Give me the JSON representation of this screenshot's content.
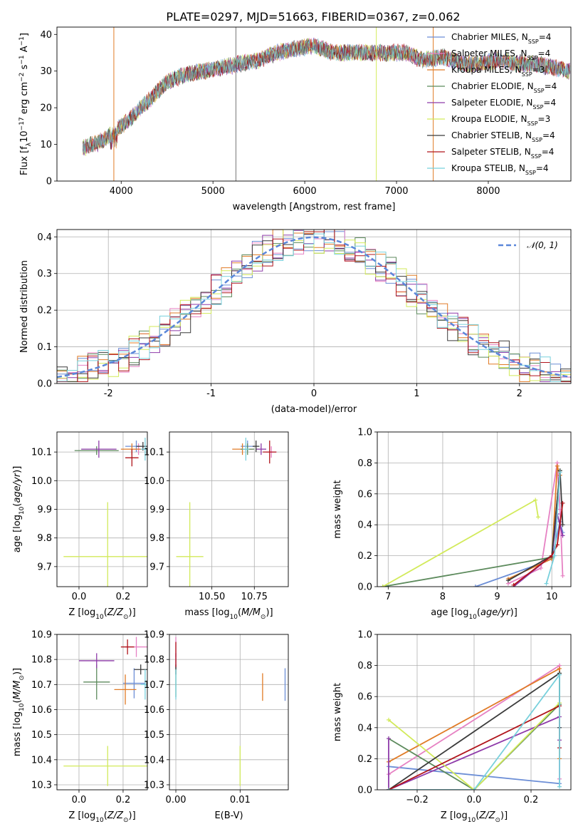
{
  "title": "PLATE=0297, MJD=51663, FIBERID=0367, z=0.062",
  "colors": {
    "Chabrier MILES": "#6c8ed6",
    "Salpeter MILES": "#e681c3",
    "Kroupa MILES": "#e07b26",
    "Chabrier ELODIE": "#5c8a5c",
    "Salpeter ELODIE": "#8e3aa9",
    "Kroupa ELODIE": "#d2ea5a",
    "Chabrier STELIB": "#3b3b3b",
    "Salpeter STELIB": "#b0141b",
    "Kroupa STELIB": "#78d0dc",
    "normal": "#5b87d9",
    "grid": "#b0b0b0"
  },
  "chart_data": [
    {
      "id": "spectrum",
      "type": "line",
      "xlabel": "wavelength [Angstrom, rest frame]",
      "ylabel_parts": {
        "pre": "Flux [f",
        "sub1": "λ",
        "mid": "10",
        "sup1": "−17",
        "post": " erg cm",
        "sup2": "−2",
        "mid2": " s",
        "sup3": "−1",
        "mid3": " A",
        "sup4": "−1",
        "end": "]"
      },
      "xlim": [
        3300,
        8900
      ],
      "ylim": [
        0,
        42
      ],
      "xticks": [
        4000,
        5000,
        6000,
        7000,
        8000
      ],
      "yticks": [
        0,
        10,
        20,
        30,
        40
      ],
      "continuum_x": [
        3580,
        3800,
        3950,
        4100,
        4300,
        4500,
        4700,
        4900,
        5100,
        5300,
        5500,
        5700,
        5900,
        6100,
        6300,
        6500,
        6700,
        6900,
        7100,
        7300,
        7500,
        7700,
        7900,
        8100,
        8300,
        8500,
        8700,
        8890
      ],
      "continuum_y": [
        9,
        11,
        14,
        17,
        22,
        27,
        29,
        30,
        31,
        32,
        33,
        35,
        36,
        37,
        35,
        35,
        35,
        35,
        35,
        33,
        34,
        32,
        32,
        33,
        32,
        32,
        31,
        30
      ],
      "series": [
        {
          "name": "Chabrier MILES",
          "nssp": "4"
        },
        {
          "name": "Salpeter MILES",
          "nssp": "4"
        },
        {
          "name": "Kroupa MILES",
          "nssp": "3"
        },
        {
          "name": "Chabrier ELODIE",
          "nssp": "4"
        },
        {
          "name": "Salpeter ELODIE",
          "nssp": "4"
        },
        {
          "name": "Kroupa ELODIE",
          "nssp": "3"
        },
        {
          "name": "Chabrier STELIB",
          "nssp": "4"
        },
        {
          "name": "Salpeter STELIB",
          "nssp": "4"
        },
        {
          "name": "Kroupa STELIB",
          "nssp": "4"
        }
      ]
    },
    {
      "id": "residuals",
      "type": "histogram-step",
      "xlabel": "(data-model)/error",
      "ylabel": "Normed distribution",
      "xlim": [
        -2.5,
        2.5
      ],
      "ylim": [
        0,
        0.42
      ],
      "xticks": [
        -2,
        -1,
        0,
        1,
        2
      ],
      "yticks": [
        0.0,
        0.1,
        0.2,
        0.3,
        0.4
      ],
      "legend": "𝒩(0, 1)",
      "bin_width": 0.1
    },
    {
      "id": "age_vs_Z",
      "type": "errorbar",
      "xlabel": "Z [log10(Z/Z⊙)]",
      "ylabel": "age  [log10(age/yr)]",
      "xlim": [
        -0.1,
        0.31
      ],
      "ylim": [
        9.63,
        10.17
      ],
      "xticks": [
        0.0,
        0.2
      ],
      "yticks": [
        9.7,
        9.8,
        9.9,
        10.0,
        10.1
      ],
      "points": [
        {
          "name": "Chabrier MILES",
          "x": 0.26,
          "y": 10.12,
          "xe": 0.05,
          "ye": 0.02
        },
        {
          "name": "Salpeter MILES",
          "x": 0.27,
          "y": 10.11,
          "xe": 0.03,
          "ye": 0.02
        },
        {
          "name": "Kroupa MILES",
          "x": 0.24,
          "y": 10.11,
          "xe": 0.05,
          "ye": 0.02
        },
        {
          "name": "Chabrier ELODIE",
          "x": 0.08,
          "y": 10.105,
          "xe": 0.1,
          "ye": 0.015
        },
        {
          "name": "Salpeter ELODIE",
          "x": 0.09,
          "y": 10.11,
          "xe": 0.08,
          "ye": 0.03
        },
        {
          "name": "Kroupa ELODIE",
          "x": 0.13,
          "y": 9.735,
          "xe": 0.2,
          "ye": 0.19
        },
        {
          "name": "Chabrier STELIB",
          "x": 0.29,
          "y": 10.12,
          "xe": 0.03,
          "ye": 0.015
        },
        {
          "name": "Salpeter STELIB",
          "x": 0.24,
          "y": 10.08,
          "xe": 0.03,
          "ye": 0.03
        },
        {
          "name": "Kroupa STELIB",
          "x": 0.3,
          "y": 10.11,
          "xe": 0.02,
          "ye": 0.04
        }
      ]
    },
    {
      "id": "age_vs_mass",
      "type": "errorbar",
      "xlabel": "mass [log10(M/M⊙)]",
      "ylabel": "",
      "xlim": [
        10.25,
        10.95
      ],
      "ylim": [
        9.63,
        10.17
      ],
      "xticks": [
        10.5,
        10.75
      ],
      "yticks": [
        9.7,
        9.8,
        9.9,
        10.0,
        10.1
      ],
      "points": [
        {
          "name": "Chabrier MILES",
          "x": 10.71,
          "y": 10.12,
          "xe": 0.04,
          "ye": 0.02
        },
        {
          "name": "Salpeter MILES",
          "x": 10.85,
          "y": 10.1,
          "xe": 0.03,
          "ye": 0.02
        },
        {
          "name": "Kroupa MILES",
          "x": 10.68,
          "y": 10.11,
          "xe": 0.06,
          "ye": 0.02
        },
        {
          "name": "Chabrier ELODIE",
          "x": 10.71,
          "y": 10.11,
          "xe": 0.04,
          "ye": 0.02
        },
        {
          "name": "Salpeter ELODIE",
          "x": 10.79,
          "y": 10.11,
          "xe": 0.03,
          "ye": 0.02
        },
        {
          "name": "Kroupa ELODIE",
          "x": 10.37,
          "y": 9.735,
          "xe": 0.08,
          "ye": 0.19
        },
        {
          "name": "Chabrier STELIB",
          "x": 10.76,
          "y": 10.12,
          "xe": 0.02,
          "ye": 0.02
        },
        {
          "name": "Salpeter STELIB",
          "x": 10.84,
          "y": 10.1,
          "xe": 0.04,
          "ye": 0.04
        },
        {
          "name": "Kroupa STELIB",
          "x": 10.7,
          "y": 10.11,
          "xe": 0.02,
          "ye": 0.04
        }
      ]
    },
    {
      "id": "weight_vs_age",
      "type": "line",
      "xlabel": "age  [log10(age/yr)]",
      "ylabel": "mass weight",
      "xlim": [
        6.8,
        10.35
      ],
      "ylim": [
        0,
        1.0
      ],
      "xticks": [
        7,
        8,
        9,
        10
      ],
      "yticks": [
        0.0,
        0.2,
        0.4,
        0.6,
        0.8,
        1.0
      ],
      "series": [
        {
          "name": "Chabrier MILES",
          "x": [
            8.6,
            9.8,
            10.0,
            10.15,
            10.2
          ],
          "y": [
            0.0,
            0.15,
            0.18,
            0.42,
            0.35
          ]
        },
        {
          "name": "Salpeter MILES",
          "x": [
            9.2,
            9.8,
            10.1,
            10.15,
            10.2
          ],
          "y": [
            0.02,
            0.12,
            0.8,
            0.5,
            0.07
          ]
        },
        {
          "name": "Kroupa MILES",
          "x": [
            9.2,
            10.0,
            10.1,
            10.15
          ],
          "y": [
            0.05,
            0.18,
            0.78,
            0.72
          ]
        },
        {
          "name": "Chabrier ELODIE",
          "x": [
            6.9,
            10.0,
            10.15
          ],
          "y": [
            0.0,
            0.19,
            0.75
          ]
        },
        {
          "name": "Salpeter ELODIE",
          "x": [
            9.3,
            10.0,
            10.1,
            10.2
          ],
          "y": [
            0.0,
            0.2,
            0.47,
            0.33
          ]
        },
        {
          "name": "Kroupa ELODIE",
          "x": [
            6.9,
            9.7,
            9.75
          ],
          "y": [
            0.0,
            0.56,
            0.45
          ]
        },
        {
          "name": "Chabrier STELIB",
          "x": [
            9.2,
            10.0,
            10.15,
            10.2
          ],
          "y": [
            0.04,
            0.2,
            0.75,
            0.4
          ]
        },
        {
          "name": "Salpeter STELIB",
          "x": [
            9.3,
            10.0,
            10.1,
            10.2
          ],
          "y": [
            0.01,
            0.2,
            0.27,
            0.54
          ]
        },
        {
          "name": "Kroupa STELIB",
          "x": [
            9.9,
            10.05,
            10.15
          ],
          "y": [
            0.02,
            0.2,
            0.74
          ]
        }
      ]
    },
    {
      "id": "mass_vs_Z",
      "type": "errorbar",
      "xlabel": "Z [log10(Z/Z⊙)]",
      "ylabel": "mass [log10(M/M⊙)]",
      "xlim": [
        -0.1,
        0.31
      ],
      "ylim": [
        10.28,
        10.9
      ],
      "xticks": [
        0.0,
        0.2
      ],
      "yticks": [
        10.3,
        10.4,
        10.5,
        10.6,
        10.7,
        10.8,
        10.9
      ],
      "points": [
        {
          "name": "Chabrier MILES",
          "x": 0.25,
          "y": 10.705,
          "xe": 0.05,
          "ye": 0.06
        },
        {
          "name": "Salpeter MILES",
          "x": 0.26,
          "y": 10.85,
          "xe": 0.05,
          "ye": 0.04
        },
        {
          "name": "Kroupa MILES",
          "x": 0.21,
          "y": 10.68,
          "xe": 0.05,
          "ye": 0.06
        },
        {
          "name": "Chabrier ELODIE",
          "x": 0.08,
          "y": 10.71,
          "xe": 0.06,
          "ye": 0.07
        },
        {
          "name": "Salpeter ELODIE",
          "x": 0.08,
          "y": 10.795,
          "xe": 0.08,
          "ye": 0.03
        },
        {
          "name": "Kroupa ELODIE",
          "x": 0.13,
          "y": 10.375,
          "xe": 0.2,
          "ye": 0.08
        },
        {
          "name": "Chabrier STELIB",
          "x": 0.28,
          "y": 10.76,
          "xe": 0.03,
          "ye": 0.02
        },
        {
          "name": "Salpeter STELIB",
          "x": 0.22,
          "y": 10.85,
          "xe": 0.03,
          "ye": 0.03
        },
        {
          "name": "Kroupa STELIB",
          "x": 0.3,
          "y": 10.7,
          "xe": 0.02,
          "ye": 0.06
        }
      ]
    },
    {
      "id": "mass_vs_ebv",
      "type": "errorbar",
      "xlabel": "E(B-V)",
      "ylabel": "",
      "xlim": [
        -0.001,
        0.0175
      ],
      "ylim": [
        10.28,
        10.9
      ],
      "xticks": [
        0.0,
        0.01
      ],
      "yticks": [
        10.3,
        10.4,
        10.5,
        10.6,
        10.7,
        10.8,
        10.9
      ],
      "points": [
        {
          "name": "Chabrier MILES",
          "x": 0.017,
          "y": 10.7,
          "xe": 0,
          "ye": 0.065
        },
        {
          "name": "Salpeter MILES",
          "x": 0.0,
          "y": 10.85,
          "xe": 0,
          "ye": 0.04
        },
        {
          "name": "Kroupa MILES",
          "x": 0.0135,
          "y": 10.69,
          "xe": 0,
          "ye": 0.055
        },
        {
          "name": "Chabrier ELODIE",
          "x": 0.0,
          "y": 10.71,
          "xe": 0,
          "ye": 0.06
        },
        {
          "name": "Salpeter ELODIE",
          "x": 0.0,
          "y": 10.795,
          "xe": 0,
          "ye": 0.03
        },
        {
          "name": "Kroupa ELODIE",
          "x": 0.01,
          "y": 10.375,
          "xe": 0,
          "ye": 0.08
        },
        {
          "name": "Chabrier STELIB",
          "x": 0.0,
          "y": 10.76,
          "xe": 0,
          "ye": 0.02
        },
        {
          "name": "Salpeter STELIB",
          "x": 0.0,
          "y": 10.82,
          "xe": 0,
          "ye": 0.05
        },
        {
          "name": "Kroupa STELIB",
          "x": 0.0,
          "y": 10.7,
          "xe": 0,
          "ye": 0.06
        }
      ]
    },
    {
      "id": "weight_vs_Z",
      "type": "line",
      "xlabel": "Z [log10(Z/Z⊙)]",
      "ylabel": "mass weight",
      "xlim": [
        -0.34,
        0.34
      ],
      "ylim": [
        0,
        1.0
      ],
      "xticks": [
        -0.2,
        0.0,
        0.2
      ],
      "yticks": [
        0.0,
        0.2,
        0.4,
        0.6,
        0.8,
        1.0
      ],
      "series": [
        {
          "name": "Chabrier MILES",
          "x": [
            -0.3,
            0.3,
            0.3
          ],
          "y": [
            0.15,
            0.04,
            0.4
          ]
        },
        {
          "name": "Salpeter MILES",
          "x": [
            -0.3,
            0.3,
            0.3
          ],
          "y": [
            0.1,
            0.8,
            0.07
          ]
        },
        {
          "name": "Kroupa MILES",
          "x": [
            -0.3,
            0.3,
            0.3
          ],
          "y": [
            0.18,
            0.78,
            0.2
          ]
        },
        {
          "name": "Chabrier ELODIE",
          "x": [
            -0.3,
            0.0,
            0.3,
            0.3
          ],
          "y": [
            0.33,
            0.0,
            0.55,
            0.75
          ]
        },
        {
          "name": "Salpeter ELODIE",
          "x": [
            -0.3,
            -0.3,
            0.3,
            0.3
          ],
          "y": [
            0.33,
            0.0,
            0.47,
            0.32
          ]
        },
        {
          "name": "Kroupa ELODIE",
          "x": [
            -0.3,
            0.0,
            0.3
          ],
          "y": [
            0.45,
            0.0,
            0.56
          ]
        },
        {
          "name": "Chabrier STELIB",
          "x": [
            -0.3,
            -0.3,
            0.3,
            0.3
          ],
          "y": [
            0.0,
            0.0,
            0.75,
            0.4
          ]
        },
        {
          "name": "Salpeter STELIB",
          "x": [
            -0.3,
            0.3,
            0.3
          ],
          "y": [
            0.0,
            0.54,
            0.27
          ]
        },
        {
          "name": "Kroupa STELIB",
          "x": [
            -0.3,
            0.0,
            0.3,
            0.3
          ],
          "y": [
            0.0,
            0.0,
            0.74,
            0.02
          ]
        }
      ]
    }
  ]
}
